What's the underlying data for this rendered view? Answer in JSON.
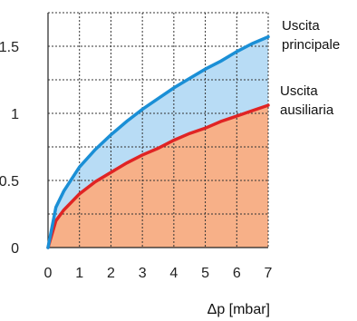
{
  "chart_data": {
    "type": "area",
    "x_ticks": [
      0,
      1,
      2,
      3,
      4,
      5,
      6,
      7
    ],
    "y_ticks": [
      0,
      0.5,
      1,
      1.5
    ],
    "x_tick_labels": [
      "0",
      "1",
      "2",
      "3",
      "4",
      "5",
      "6",
      "7"
    ],
    "y_tick_labels": [
      "0",
      "0.5",
      "1",
      "1.5"
    ],
    "xlim": [
      0,
      7
    ],
    "ylim": [
      0,
      1.75
    ],
    "xlabel": "Δp [mbar]",
    "ylabel": "",
    "grid": true,
    "series": [
      {
        "name_lines": [
          "Uscita",
          "principale"
        ],
        "color": "#1a8fd6",
        "fill": "#b8dcf5",
        "x": [
          0,
          0.25,
          0.5,
          1,
          1.5,
          2,
          2.5,
          3,
          3.5,
          4,
          4.5,
          5,
          5.5,
          6,
          6.5,
          7
        ],
        "y": [
          0,
          0.3,
          0.42,
          0.6,
          0.73,
          0.84,
          0.94,
          1.03,
          1.11,
          1.19,
          1.26,
          1.33,
          1.39,
          1.46,
          1.52,
          1.57
        ]
      },
      {
        "name_lines": [
          "Uscita",
          "ausiliaria"
        ],
        "color": "#e02424",
        "fill": "#f7b088",
        "x": [
          0,
          0.25,
          0.5,
          1,
          1.5,
          2,
          2.5,
          3,
          3.5,
          4,
          4.5,
          5,
          5.5,
          6,
          6.5,
          7
        ],
        "y": [
          0,
          0.2,
          0.28,
          0.4,
          0.49,
          0.56,
          0.63,
          0.69,
          0.74,
          0.8,
          0.85,
          0.89,
          0.94,
          0.98,
          1.02,
          1.06
        ]
      }
    ]
  }
}
